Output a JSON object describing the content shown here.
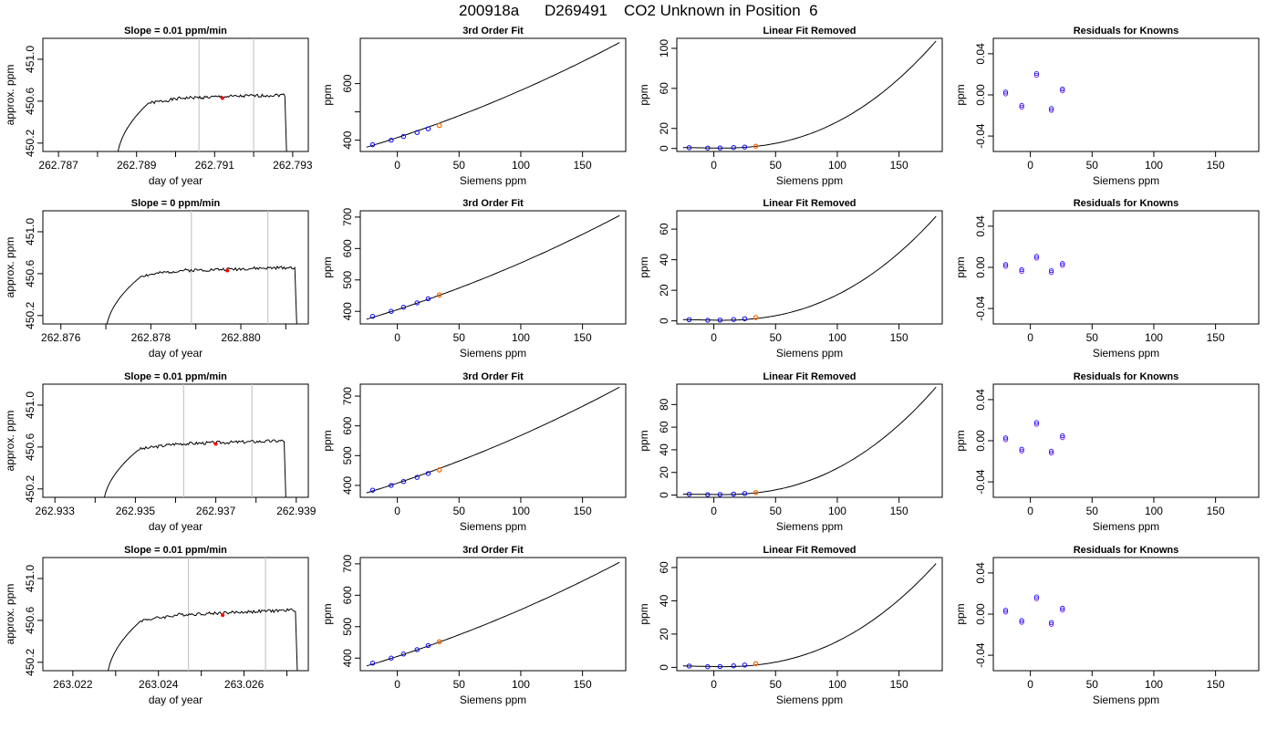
{
  "header": {
    "date_code": "200918a",
    "tank_id": "D269491",
    "description": "CO2 Unknown in Position  6"
  },
  "colors": {
    "trace": "#000000",
    "cursor_lines": "#c8c8c8",
    "known_points": "#0000ff",
    "unknown_point": "#ff6a00",
    "residual_points": "#8a2be2",
    "highlight_point": "#ff0000"
  },
  "chart_data": [
    {
      "type": "line",
      "title": "Slope =  0.01  ppm/min",
      "xlabel": "day of year",
      "ylabel": "approx. ppm",
      "xlim": [
        262.7866,
        262.7934
      ],
      "ylim": [
        450.12,
        451.2
      ],
      "xticks": [
        262.787,
        262.788,
        262.789,
        262.79,
        262.791,
        262.792,
        262.793
      ],
      "xticklabels": [
        "262.787",
        "",
        "262.789",
        "",
        "262.791",
        "",
        "262.793"
      ],
      "yticks": [
        450.2,
        450.6,
        451.0
      ],
      "yticklabels": [
        "450.2",
        "450.6",
        "451.0"
      ],
      "vlines": [
        262.7906,
        262.792
      ],
      "marker": {
        "x": 262.7912,
        "y": 450.63
      },
      "trace": {
        "start": 262.7885,
        "rise_end": 262.7893,
        "end": 262.7928,
        "base": 450.62,
        "tail": 450.66,
        "seed": 1
      }
    },
    {
      "type": "scatter",
      "title": "3rd Order Fit",
      "xlabel": "Siemens ppm",
      "ylabel": "ppm",
      "xlim": [
        -30,
        185
      ],
      "ylim": [
        360,
        760
      ],
      "xticks": [
        0,
        50,
        100,
        150
      ],
      "yticks": [
        400,
        500,
        600
      ],
      "yticklabels": [
        "400",
        "",
        "600"
      ],
      "curve": {
        "x0": -25,
        "x1": 180,
        "y0": 375,
        "y1": 745,
        "mode": "fit"
      },
      "points": [
        {
          "x": -20,
          "y": 384
        },
        {
          "x": -5,
          "y": 400
        },
        {
          "x": 5,
          "y": 413
        },
        {
          "x": 16,
          "y": 427
        },
        {
          "x": 25,
          "y": 440
        }
      ],
      "unknown": {
        "x": 34,
        "y": 452
      }
    },
    {
      "type": "scatter",
      "title": "Linear Fit Removed",
      "xlabel": "Siemens ppm",
      "ylabel": "ppm",
      "xlim": [
        -30,
        185
      ],
      "ylim": [
        -3,
        110
      ],
      "xticks": [
        0,
        50,
        100,
        150
      ],
      "yticks": [
        0,
        20,
        60,
        100
      ],
      "curve": {
        "x0": -25,
        "x1": 180,
        "ymax": 107,
        "mode": "cubic"
      },
      "points": [
        {
          "x": -20,
          "y": 0.8
        },
        {
          "x": -5,
          "y": 0.4
        },
        {
          "x": 5,
          "y": 0.5
        },
        {
          "x": 16,
          "y": 0.9
        },
        {
          "x": 25,
          "y": 1.4
        }
      ],
      "unknown": {
        "x": 34,
        "y": 2.2
      }
    },
    {
      "type": "scatter",
      "title": "Residuals for Knowns",
      "xlabel": "Siemens ppm",
      "ylabel": "ppm",
      "xlim": [
        -30,
        185
      ],
      "ylim": [
        -0.055,
        0.055
      ],
      "xticks": [
        0,
        50,
        100,
        150
      ],
      "yticks": [
        -0.04,
        0.0,
        0.04
      ],
      "yticklabels": [
        "-0.04",
        "0.00",
        "0.04"
      ],
      "points": [
        {
          "x": -20,
          "y": 0.001
        },
        {
          "x": -7,
          "y": -0.012
        },
        {
          "x": 5,
          "y": 0.019
        },
        {
          "x": 17,
          "y": -0.015
        },
        {
          "x": 26,
          "y": 0.004
        }
      ]
    },
    {
      "type": "line",
      "title": "Slope =  0  ppm/min",
      "xlabel": "day of year",
      "ylabel": "approx. ppm",
      "xlim": [
        262.8756,
        262.8815
      ],
      "ylim": [
        450.12,
        451.2
      ],
      "xticks": [
        262.876,
        262.877,
        262.878,
        262.879,
        262.88,
        262.881
      ],
      "xticklabels": [
        "262.876",
        "",
        "262.878",
        "",
        "262.880",
        ""
      ],
      "yticks": [
        450.2,
        450.6,
        451.0
      ],
      "yticklabels": [
        "450.2",
        "450.6",
        "451.0"
      ],
      "vlines": [
        262.8789,
        262.8806
      ],
      "marker": {
        "x": 262.8797,
        "y": 450.63
      },
      "trace": {
        "start": 262.877,
        "rise_end": 262.8778,
        "end": 262.8812,
        "base": 450.62,
        "tail": 450.66,
        "seed": 2
      }
    },
    {
      "type": "scatter",
      "title": "3rd Order Fit",
      "xlabel": "Siemens ppm",
      "ylabel": "ppm",
      "xlim": [
        -30,
        185
      ],
      "ylim": [
        360,
        720
      ],
      "xticks": [
        0,
        50,
        100,
        150
      ],
      "yticks": [
        400,
        500,
        600,
        700
      ],
      "yticklabels": [
        "400",
        "500",
        "600",
        "700"
      ],
      "curve": {
        "x0": -25,
        "x1": 180,
        "y0": 375,
        "y1": 705,
        "mode": "fit"
      },
      "points": [
        {
          "x": -20,
          "y": 384
        },
        {
          "x": -5,
          "y": 400
        },
        {
          "x": 5,
          "y": 413
        },
        {
          "x": 16,
          "y": 427
        },
        {
          "x": 25,
          "y": 440
        }
      ],
      "unknown": {
        "x": 34,
        "y": 452
      }
    },
    {
      "type": "scatter",
      "title": "Linear Fit Removed",
      "xlabel": "Siemens ppm",
      "ylabel": "ppm",
      "xlim": [
        -30,
        185
      ],
      "ylim": [
        -2,
        72
      ],
      "xticks": [
        0,
        50,
        100,
        150
      ],
      "yticks": [
        0,
        20,
        40,
        60
      ],
      "curve": {
        "x0": -25,
        "x1": 180,
        "ymax": 68,
        "mode": "cubic"
      },
      "points": [
        {
          "x": -20,
          "y": 0.8
        },
        {
          "x": -5,
          "y": 0.4
        },
        {
          "x": 5,
          "y": 0.5
        },
        {
          "x": 16,
          "y": 0.9
        },
        {
          "x": 25,
          "y": 1.4
        }
      ],
      "unknown": {
        "x": 34,
        "y": 2.2
      }
    },
    {
      "type": "scatter",
      "title": "Residuals for Knowns",
      "xlabel": "Siemens ppm",
      "ylabel": "ppm",
      "xlim": [
        -30,
        185
      ],
      "ylim": [
        -0.055,
        0.055
      ],
      "xticks": [
        0,
        50,
        100,
        150
      ],
      "yticks": [
        -0.04,
        0.0,
        0.04
      ],
      "yticklabels": [
        "-0.04",
        "0.00",
        "0.04"
      ],
      "points": [
        {
          "x": -20,
          "y": 0.001
        },
        {
          "x": -7,
          "y": -0.004
        },
        {
          "x": 5,
          "y": 0.009
        },
        {
          "x": 17,
          "y": -0.005
        },
        {
          "x": 26,
          "y": 0.002
        }
      ]
    },
    {
      "type": "line",
      "title": "Slope =  0.01  ppm/min",
      "xlabel": "day of year",
      "ylabel": "approx. ppm",
      "xlim": [
        262.9327,
        262.9393
      ],
      "ylim": [
        450.12,
        451.2
      ],
      "xticks": [
        262.933,
        262.934,
        262.935,
        262.936,
        262.937,
        262.938,
        262.939
      ],
      "xticklabels": [
        "262.933",
        "",
        "262.935",
        "",
        "262.937",
        "",
        "262.939"
      ],
      "yticks": [
        450.2,
        450.6,
        451.0
      ],
      "yticklabels": [
        "450.2",
        "450.6",
        "451.0"
      ],
      "vlines": [
        262.9362,
        262.9379
      ],
      "marker": {
        "x": 262.937,
        "y": 450.63
      },
      "trace": {
        "start": 262.9342,
        "rise_end": 262.9351,
        "end": 262.9387,
        "base": 450.62,
        "tail": 450.66,
        "seed": 3
      }
    },
    {
      "type": "scatter",
      "title": "3rd Order Fit",
      "xlabel": "Siemens ppm",
      "ylabel": "ppm",
      "xlim": [
        -30,
        185
      ],
      "ylim": [
        360,
        740
      ],
      "xticks": [
        0,
        50,
        100,
        150
      ],
      "yticks": [
        400,
        500,
        600,
        700
      ],
      "yticklabels": [
        "400",
        "500",
        "600",
        "700"
      ],
      "curve": {
        "x0": -25,
        "x1": 180,
        "y0": 375,
        "y1": 730,
        "mode": "fit"
      },
      "points": [
        {
          "x": -20,
          "y": 384
        },
        {
          "x": -5,
          "y": 400
        },
        {
          "x": 5,
          "y": 413
        },
        {
          "x": 16,
          "y": 427
        },
        {
          "x": 25,
          "y": 440
        }
      ],
      "unknown": {
        "x": 34,
        "y": 452
      }
    },
    {
      "type": "scatter",
      "title": "Linear Fit Removed",
      "xlabel": "Siemens ppm",
      "ylabel": "ppm",
      "xlim": [
        -30,
        185
      ],
      "ylim": [
        -2,
        98
      ],
      "xticks": [
        0,
        50,
        100,
        150
      ],
      "yticks": [
        0,
        20,
        40,
        60,
        80
      ],
      "curve": {
        "x0": -25,
        "x1": 180,
        "ymax": 95,
        "mode": "cubic"
      },
      "points": [
        {
          "x": -20,
          "y": 0.8
        },
        {
          "x": -5,
          "y": 0.4
        },
        {
          "x": 5,
          "y": 0.5
        },
        {
          "x": 16,
          "y": 0.9
        },
        {
          "x": 25,
          "y": 1.4
        }
      ],
      "unknown": {
        "x": 34,
        "y": 2.2
      }
    },
    {
      "type": "scatter",
      "title": "Residuals for Knowns",
      "xlabel": "Siemens ppm",
      "ylabel": "ppm",
      "xlim": [
        -30,
        185
      ],
      "ylim": [
        -0.055,
        0.055
      ],
      "xticks": [
        0,
        50,
        100,
        150
      ],
      "yticks": [
        -0.04,
        0.0,
        0.04
      ],
      "yticklabels": [
        "-0.04",
        "0.00",
        "0.04"
      ],
      "points": [
        {
          "x": -20,
          "y": 0.001
        },
        {
          "x": -7,
          "y": -0.01
        },
        {
          "x": 5,
          "y": 0.016
        },
        {
          "x": 17,
          "y": -0.012
        },
        {
          "x": 26,
          "y": 0.003
        }
      ]
    },
    {
      "type": "line",
      "title": "Slope =  0.01  ppm/min",
      "xlabel": "day of year",
      "ylabel": "approx. ppm",
      "xlim": [
        263.0213,
        263.0275
      ],
      "ylim": [
        450.12,
        451.2
      ],
      "xticks": [
        263.022,
        263.023,
        263.024,
        263.025,
        263.026,
        263.027
      ],
      "xticklabels": [
        "263.022",
        "",
        "263.024",
        "",
        "263.026",
        ""
      ],
      "yticks": [
        450.2,
        450.6,
        451.0
      ],
      "yticklabels": [
        "450.2",
        "450.6",
        "451.0"
      ],
      "vlines": [
        263.0247,
        263.0265
      ],
      "marker": {
        "x": 263.0255,
        "y": 450.65
      },
      "trace": {
        "start": 263.0228,
        "rise_end": 263.0236,
        "end": 263.0272,
        "base": 450.64,
        "tail": 450.7,
        "seed": 4
      }
    },
    {
      "type": "scatter",
      "title": "3rd Order Fit",
      "xlabel": "Siemens ppm",
      "ylabel": "ppm",
      "xlim": [
        -30,
        185
      ],
      "ylim": [
        360,
        720
      ],
      "xticks": [
        0,
        50,
        100,
        150
      ],
      "yticks": [
        400,
        500,
        600,
        700
      ],
      "yticklabels": [
        "400",
        "500",
        "600",
        "700"
      ],
      "curve": {
        "x0": -25,
        "x1": 180,
        "y0": 375,
        "y1": 705,
        "mode": "fit"
      },
      "points": [
        {
          "x": -20,
          "y": 384
        },
        {
          "x": -5,
          "y": 400
        },
        {
          "x": 5,
          "y": 413
        },
        {
          "x": 16,
          "y": 427
        },
        {
          "x": 25,
          "y": 440
        }
      ],
      "unknown": {
        "x": 34,
        "y": 452
      }
    },
    {
      "type": "scatter",
      "title": "Linear Fit Removed",
      "xlabel": "Siemens ppm",
      "ylabel": "ppm",
      "xlim": [
        -30,
        185
      ],
      "ylim": [
        -2,
        66
      ],
      "xticks": [
        0,
        50,
        100,
        150
      ],
      "yticks": [
        0,
        20,
        40,
        60
      ],
      "curve": {
        "x0": -25,
        "x1": 180,
        "ymax": 62,
        "mode": "cubic"
      },
      "points": [
        {
          "x": -20,
          "y": 0.8
        },
        {
          "x": -5,
          "y": 0.4
        },
        {
          "x": 5,
          "y": 0.5
        },
        {
          "x": 16,
          "y": 0.9
        },
        {
          "x": 25,
          "y": 1.4
        }
      ],
      "unknown": {
        "x": 34,
        "y": 2.2
      }
    },
    {
      "type": "scatter",
      "title": "Residuals for Knowns",
      "xlabel": "Siemens ppm",
      "ylabel": "ppm",
      "xlim": [
        -30,
        185
      ],
      "ylim": [
        -0.055,
        0.055
      ],
      "xticks": [
        0,
        50,
        100,
        150
      ],
      "yticks": [
        -0.04,
        0.0,
        0.04
      ],
      "yticklabels": [
        "-0.04",
        "0.00",
        "0.04"
      ],
      "points": [
        {
          "x": -20,
          "y": 0.002
        },
        {
          "x": -7,
          "y": -0.008
        },
        {
          "x": 5,
          "y": 0.015
        },
        {
          "x": 17,
          "y": -0.01
        },
        {
          "x": 26,
          "y": 0.004
        }
      ]
    }
  ]
}
